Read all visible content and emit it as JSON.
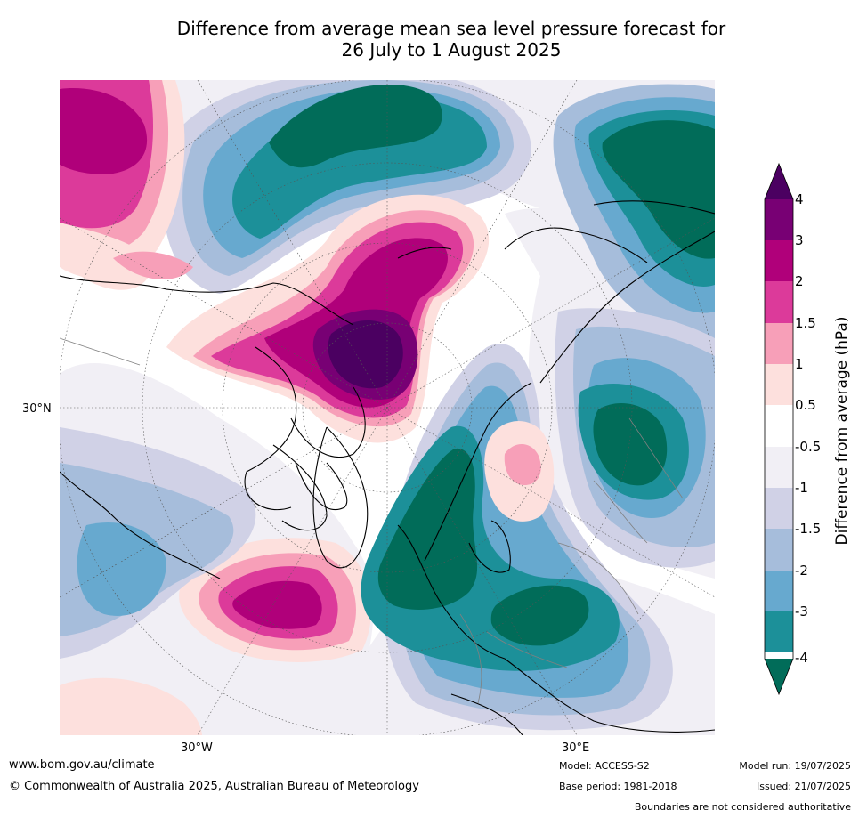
{
  "title": {
    "line1": "Difference from average mean sea level pressure forecast for",
    "line2": "26 July to 1 August 2025"
  },
  "graticule_labels": {
    "lat_30n": "30°N",
    "lon_30w": "30°W",
    "lon_30e": "30°E"
  },
  "colorbar": {
    "title": "Difference from average (hPa)",
    "levels": [
      "4",
      "3",
      "2",
      "1.5",
      "1",
      "0.5",
      "-0.5",
      "-1",
      "-1.5",
      "-2",
      "-3",
      "-4"
    ],
    "colors": {
      "gt4": "#4b0061",
      "3to4": "#780074",
      "2to3": "#b0007a",
      "1.5to2": "#dc3a9a",
      "1to1.5": "#f79fb8",
      "0.5to1": "#fde0dd",
      "neutral": "#ffffff",
      "m1tom0.5": "#f1eff5",
      "m1.5tom1": "#d0d1e6",
      "m2tom1.5": "#a6bddb",
      "m3tom2": "#67a9cf",
      "m4tom3": "#1c9099",
      "ltm4": "#016c59"
    }
  },
  "footer": {
    "url": "www.bom.gov.au/climate",
    "copyright": "© Commonwealth of Australia 2025, Australian Bureau of Meteorology",
    "model": "Model: ACCESS-S2",
    "base_period": "Base period: 1981-2018",
    "model_run": "Model run: 19/07/2025",
    "issued": "Issued: 21/07/2025",
    "disclaimer": "Boundaries are not considered authoritative"
  }
}
